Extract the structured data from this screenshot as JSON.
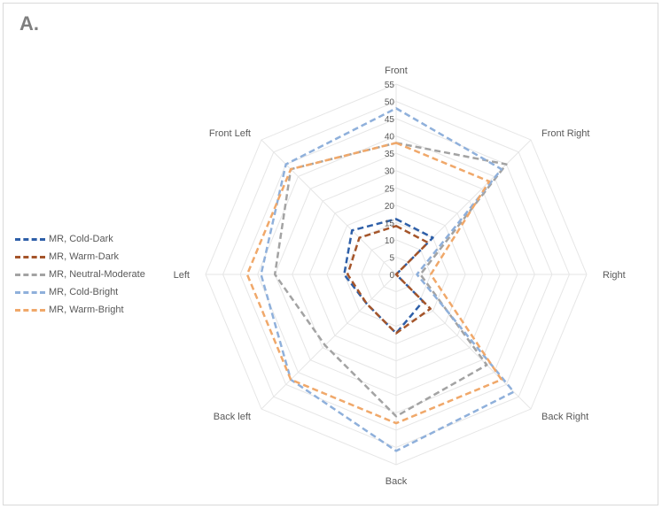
{
  "panel": {
    "label": "A."
  },
  "chart_data": {
    "type": "radar",
    "categories": [
      "Front",
      "Front Right",
      "Right",
      "Back Right",
      "Back",
      "Back left",
      "Left",
      "Front Left"
    ],
    "r_ticks": [
      0,
      5,
      10,
      15,
      20,
      25,
      30,
      35,
      40,
      45,
      50,
      55
    ],
    "rlim": [
      0,
      55
    ],
    "grid": true,
    "legend_position": "left",
    "series": [
      {
        "name": "MR, Cold-Dark",
        "color": "#2e5fa8",
        "values": [
          16,
          15,
          0,
          11,
          17,
          12,
          15,
          18
        ]
      },
      {
        "name": "MR, Warm-Dark",
        "color": "#a5552a",
        "values": [
          14,
          13,
          0,
          14,
          17,
          12,
          14,
          15
        ]
      },
      {
        "name": "MR, Neutral-Moderate",
        "color": "#a3a3a3",
        "values": [
          38,
          45,
          7,
          37,
          41,
          29,
          35,
          43
        ]
      },
      {
        "name": "MR, Cold-Bright",
        "color": "#8fb0db",
        "values": [
          48,
          43,
          6,
          48,
          51,
          43,
          39,
          45
        ]
      },
      {
        "name": "MR, Warm-Bright",
        "color": "#f0a86a",
        "values": [
          38,
          38,
          10,
          43,
          43,
          43,
          43,
          43
        ]
      }
    ]
  }
}
